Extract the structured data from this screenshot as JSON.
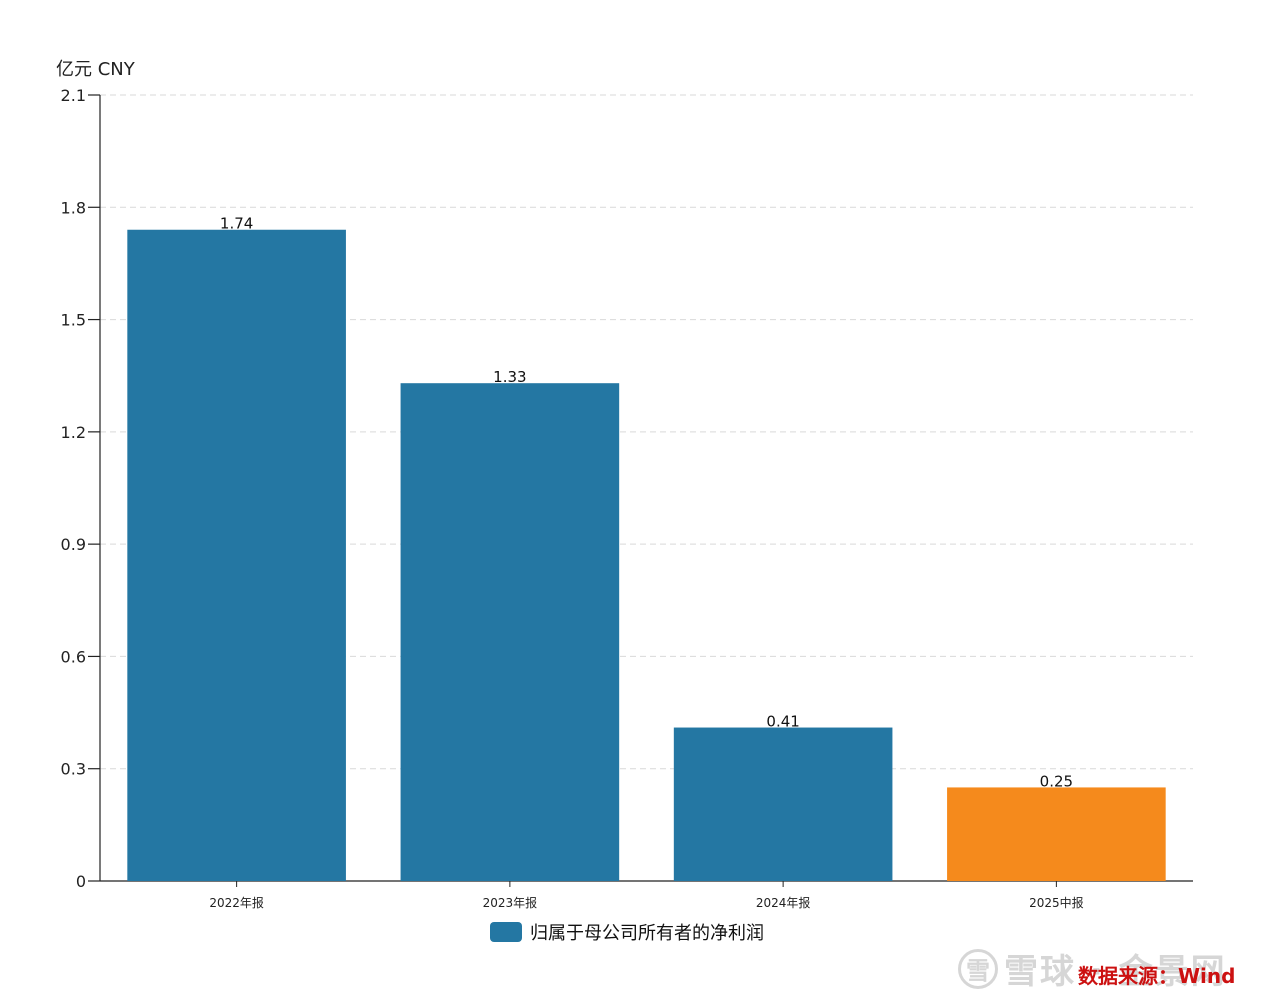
{
  "chart_data": {
    "type": "bar",
    "unit_label": "亿元  CNY",
    "categories": [
      "2022年报",
      "2023年报",
      "2024年报",
      "2025中报"
    ],
    "values": [
      1.74,
      1.33,
      0.41,
      0.25
    ],
    "data_labels": [
      "1.74",
      "1.33",
      "0.41",
      "0.25"
    ],
    "bar_colors": [
      "#2477a3",
      "#2477a3",
      "#2477a3",
      "#f58a1c"
    ],
    "ylim": [
      0,
      2.1
    ],
    "yticks": [
      0,
      0.3,
      0.6,
      0.9,
      1.2,
      1.5,
      1.8,
      2.1
    ],
    "ytick_labels": [
      "0",
      "0.3",
      "0.6",
      "0.9",
      "1.2",
      "1.5",
      "1.8",
      "2.1"
    ],
    "grid": true,
    "legend": {
      "label": "归属于母公司所有者的净利润",
      "color": "#2477a3",
      "placement": "bottom"
    }
  },
  "footer": {
    "source_text": "数据来源：Wind",
    "watermark_logo": "雪",
    "watermark_text": "雪球 · 金景网"
  }
}
